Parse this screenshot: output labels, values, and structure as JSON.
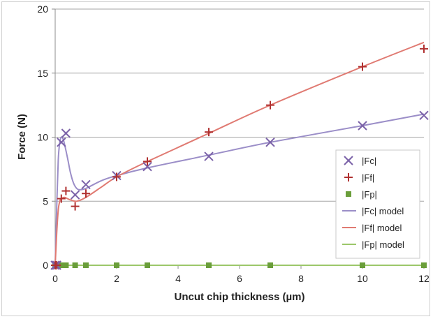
{
  "chart_data": {
    "type": "scatter",
    "xlabel": "Uncut chip thickness (µm)",
    "ylabel": "Force (N)",
    "xlim": [
      0,
      12
    ],
    "ylim": [
      0,
      20
    ],
    "xticks": [
      0,
      2,
      4,
      6,
      8,
      10,
      12
    ],
    "yticks": [
      0,
      5,
      10,
      15,
      20
    ],
    "grid": "horizontal",
    "legend_position": "right",
    "series": [
      {
        "name": "|Fc|",
        "kind": "markers",
        "marker": "x",
        "color": "#7b62a8",
        "x": [
          0,
          0.05,
          0.2,
          0.35,
          0.65,
          1,
          2,
          3,
          5,
          7,
          10,
          12
        ],
        "y": [
          0,
          0,
          9.6,
          10.3,
          5.5,
          6.3,
          7.0,
          7.7,
          8.5,
          9.6,
          10.9,
          11.7
        ]
      },
      {
        "name": "|Ff|",
        "kind": "markers",
        "marker": "plus",
        "color": "#b03030",
        "x": [
          0,
          0.05,
          0.2,
          0.35,
          0.65,
          1,
          2,
          3,
          5,
          7,
          10,
          12
        ],
        "y": [
          0,
          0,
          5.2,
          5.8,
          4.6,
          5.6,
          6.9,
          8.1,
          10.4,
          12.5,
          15.5,
          16.9
        ]
      },
      {
        "name": "|Fp|",
        "kind": "markers",
        "marker": "square",
        "color": "#6a9e3a",
        "x": [
          0,
          0.05,
          0.2,
          0.35,
          0.65,
          1,
          2,
          3,
          5,
          7,
          10,
          12
        ],
        "y": [
          0,
          0,
          0,
          0,
          0,
          0,
          0,
          0,
          0,
          0,
          0,
          0
        ]
      },
      {
        "name": "|Fc| model",
        "kind": "line",
        "color": "#9b8ec8",
        "x": [
          0,
          0.05,
          0.1,
          0.15,
          0.2,
          0.25,
          0.3,
          0.4,
          0.5,
          0.6,
          0.7,
          0.8,
          1.0,
          1.5,
          2,
          3,
          5,
          7,
          10,
          12
        ],
        "y": [
          0,
          4.5,
          8.2,
          9.6,
          10.0,
          9.9,
          9.5,
          8.4,
          7.2,
          6.4,
          6.0,
          5.9,
          6.0,
          6.6,
          7.0,
          7.6,
          8.6,
          9.6,
          10.9,
          11.8
        ]
      },
      {
        "name": "|Ff| model",
        "kind": "line",
        "color": "#e07a72",
        "x": [
          0,
          0.05,
          0.1,
          0.15,
          0.2,
          0.3,
          0.4,
          0.5,
          0.7,
          1.0,
          1.5,
          2,
          3,
          5,
          7,
          10,
          12
        ],
        "y": [
          0,
          2.5,
          4.3,
          5.0,
          5.2,
          5.3,
          5.2,
          5.1,
          5.0,
          5.3,
          6.1,
          6.9,
          8.1,
          10.3,
          12.5,
          15.5,
          17.4
        ]
      },
      {
        "name": "|Fp| model",
        "kind": "line",
        "color": "#9cc76a",
        "x": [
          0,
          12
        ],
        "y": [
          0,
          0
        ]
      }
    ]
  }
}
